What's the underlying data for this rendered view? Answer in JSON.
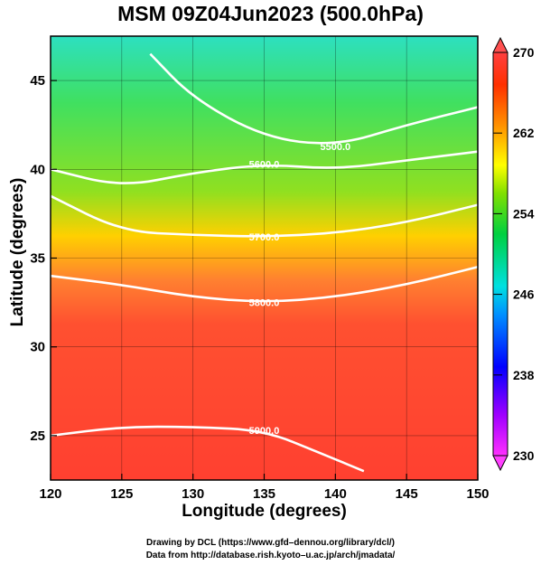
{
  "chart_data": {
    "type": "heatmap",
    "title": "MSM 09Z04Jun2023 (500.0hPa)",
    "xlabel": "Longitude (degrees)",
    "ylabel": "Latitude  (degrees)",
    "xlim": [
      120,
      150
    ],
    "ylim": [
      22.5,
      47.5
    ],
    "xticks": [
      "120",
      "125",
      "130",
      "135",
      "140",
      "145",
      "150"
    ],
    "yticks": [
      "25",
      "30",
      "35",
      "40",
      "45"
    ],
    "colorbar": {
      "min": 230,
      "max": 270,
      "ticks": [
        "230",
        "238",
        "246",
        "254",
        "262",
        "270"
      ],
      "colors": [
        "#ff30ff",
        "#a000ff",
        "#0000ff",
        "#0090ff",
        "#00e0e0",
        "#00d040",
        "#80e000",
        "#ffff00",
        "#ff9000",
        "#ff3000",
        "#ff4040"
      ]
    },
    "contours": [
      {
        "label": "5500.0",
        "lat": [
          46.5,
          44.0,
          41.8,
          41.3,
          42.5,
          43.5
        ],
        "lon": [
          127,
          130,
          135,
          140,
          145,
          150
        ]
      },
      {
        "label": "5600.0",
        "lat": [
          40.0,
          39.0,
          39.8,
          40.3,
          40.0,
          40.5,
          41.0
        ],
        "lon": [
          120,
          125,
          130,
          135,
          140,
          145,
          150
        ]
      },
      {
        "label": "5700.0",
        "lat": [
          38.5,
          36.5,
          36.3,
          36.2,
          36.4,
          37.0,
          38.0
        ],
        "lon": [
          120,
          125,
          130,
          135,
          140,
          145,
          150
        ]
      },
      {
        "label": "5800.0",
        "lat": [
          34.0,
          33.5,
          32.8,
          32.5,
          32.8,
          33.5,
          34.5
        ],
        "lon": [
          120,
          125,
          130,
          135,
          140,
          145,
          150
        ]
      },
      {
        "label": "5900.0",
        "lat": [
          25.0,
          25.5,
          25.5,
          25.3,
          24.0,
          23.0
        ],
        "lon": [
          120,
          125,
          130,
          135,
          139,
          142
        ]
      }
    ],
    "credits": [
      "Drawing by DCL (https://www.gfd–dennou.org/library/dcl/)",
      "Data from http://database.rish.kyoto–u.ac.jp/arch/jmadata/"
    ]
  }
}
